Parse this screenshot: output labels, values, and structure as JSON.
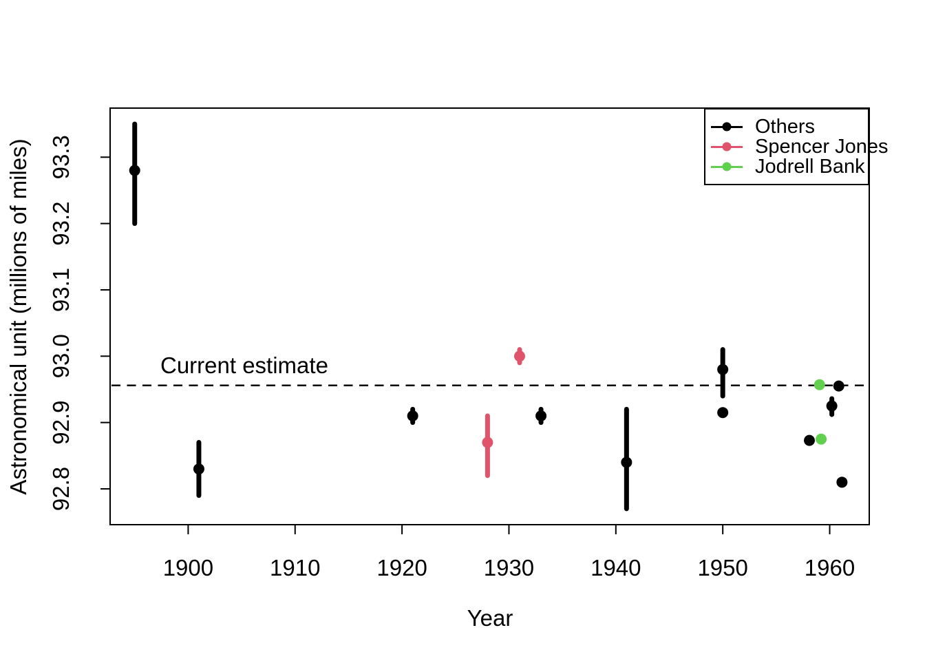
{
  "figure": {
    "background": "#ffffff",
    "annotation_label": "Current estimate",
    "legend": {
      "position": "topright",
      "items": [
        {
          "label": "Others",
          "color": "#000000"
        },
        {
          "label": "Spencer Jones",
          "color": "#DF536B"
        },
        {
          "label": "Jodrell Bank",
          "color": "#61D04F"
        }
      ]
    }
  },
  "chart_data": {
    "type": "scatter",
    "title": "",
    "xlabel": "Year",
    "ylabel": "Astronomical unit (millions of miles)",
    "xlim": [
      1892.7,
      1963.7
    ],
    "ylim": [
      92.746,
      93.374
    ],
    "xticks": [
      1900,
      1910,
      1920,
      1930,
      1940,
      1950,
      1960
    ],
    "xtick_labels": [
      "1900",
      "1910",
      "1920",
      "1930",
      "1940",
      "1950",
      "1960"
    ],
    "yticks": [
      92.8,
      92.9,
      93.0,
      93.1,
      93.2,
      93.3
    ],
    "ytick_labels": [
      "92.8",
      "92.9",
      "93.0",
      "93.1",
      "93.2",
      "93.3"
    ],
    "grid": false,
    "reference_line": {
      "label": "Current estimate",
      "value": 92.956,
      "style": "dashed",
      "color": "#000000"
    },
    "marker": {
      "radius": 8,
      "errorbar_width": 7
    },
    "series": [
      {
        "name": "Others",
        "color": "#000000",
        "points": [
          {
            "x": 1895,
            "y": 93.28,
            "ylo": 93.2,
            "yhi": 93.35
          },
          {
            "x": 1901,
            "y": 92.83,
            "ylo": 92.79,
            "yhi": 92.87
          },
          {
            "x": 1921,
            "y": 92.91,
            "ylo": 92.9,
            "yhi": 92.92
          },
          {
            "x": 1933,
            "y": 92.91,
            "ylo": 92.9,
            "yhi": 92.92
          },
          {
            "x": 1941,
            "y": 92.84,
            "ylo": 92.77,
            "yhi": 92.92
          },
          {
            "x": 1950,
            "y": 92.98,
            "ylo": 92.94,
            "yhi": 93.01
          },
          {
            "x": 1950,
            "y": 92.915,
            "ylo": null,
            "yhi": null
          },
          {
            "x": 1958.1,
            "y": 92.873,
            "ylo": null,
            "yhi": null
          },
          {
            "x": 1960.2,
            "y": 92.925,
            "ylo": 92.912,
            "yhi": 92.936
          },
          {
            "x": 1960.85,
            "y": 92.955,
            "ylo": null,
            "yhi": null
          },
          {
            "x": 1961.15,
            "y": 92.81,
            "ylo": null,
            "yhi": null
          }
        ]
      },
      {
        "name": "Spencer Jones",
        "color": "#DF536B",
        "points": [
          {
            "x": 1928,
            "y": 92.87,
            "ylo": 92.82,
            "yhi": 92.91
          },
          {
            "x": 1931,
            "y": 93.0,
            "ylo": 92.99,
            "yhi": 93.01
          }
        ]
      },
      {
        "name": "Jodrell Bank",
        "color": "#61D04F",
        "points": [
          {
            "x": 1959.05,
            "y": 92.957,
            "ylo": null,
            "yhi": null
          },
          {
            "x": 1959.2,
            "y": 92.875,
            "ylo": null,
            "yhi": null
          }
        ]
      }
    ]
  }
}
